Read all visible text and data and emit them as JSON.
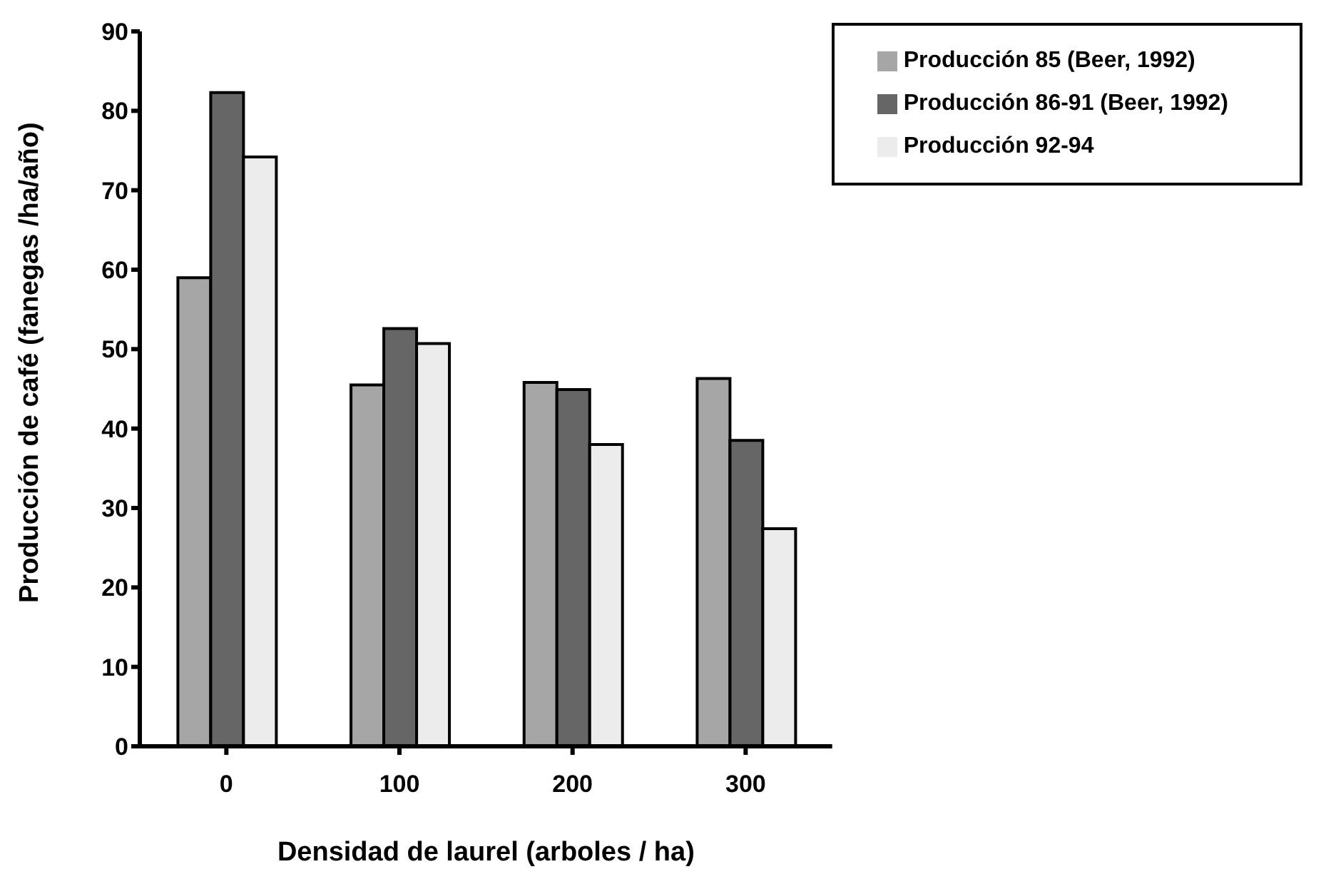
{
  "chart_data": {
    "type": "bar",
    "xlabel": "Densidad de laurel (arboles / ha)",
    "ylabel": "Producción de café (fanegas /ha/año)",
    "categories": [
      "0",
      "100",
      "200",
      "300"
    ],
    "series": [
      {
        "name": "Producción 85 (Beer, 1992)",
        "color": "#a6a6a6",
        "values": [
          59.0,
          45.5,
          45.8,
          46.3
        ]
      },
      {
        "name": "Producción 86-91 (Beer, 1992)",
        "color": "#666666",
        "values": [
          82.3,
          52.6,
          44.9,
          38.5
        ]
      },
      {
        "name": "Producción 92-94",
        "color": "#ececec",
        "values": [
          74.2,
          50.7,
          38.0,
          27.4
        ]
      }
    ],
    "ylim": [
      0,
      90
    ],
    "yticks": [
      0,
      10,
      20,
      30,
      40,
      50,
      60,
      70,
      80,
      90
    ],
    "grid": false,
    "legend": "top right"
  }
}
